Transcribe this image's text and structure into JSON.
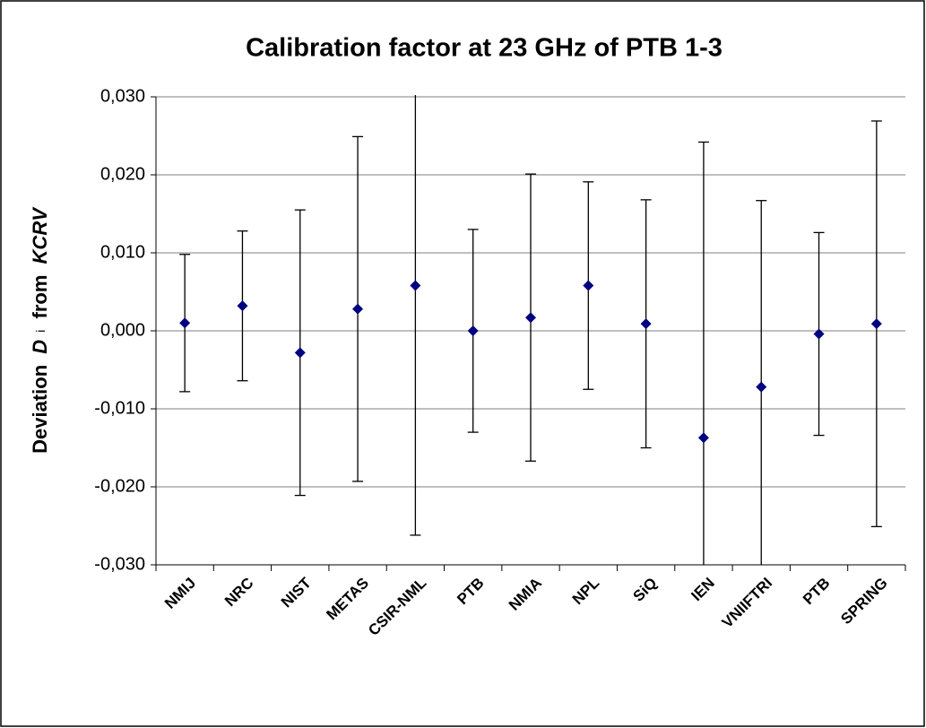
{
  "chart_data": {
    "type": "errorbar",
    "title": "Calibration factor at 23 GHz of PTB 1-3",
    "y_label_parts": [
      "Deviation",
      "D",
      "i",
      "from",
      "KCRV"
    ],
    "categories": [
      "NMIJ",
      "NRC",
      "NIST",
      "METAS",
      "CSIR-NML",
      "PTB",
      "NMIA",
      "NPL",
      "SiQ",
      "IEN",
      "VNIIFTRI",
      "PTB",
      "SPRING"
    ],
    "values": [
      0.001,
      0.0032,
      -0.0028,
      0.0028,
      0.0058,
      0.0,
      0.0017,
      0.0058,
      0.0009,
      -0.0137,
      -0.0072,
      -0.0004,
      0.0009
    ],
    "errors": [
      0.0088,
      0.0096,
      0.0183,
      0.0221,
      0.032,
      0.013,
      0.0184,
      0.0133,
      0.0159,
      0.0379,
      0.0239,
      0.013,
      0.026
    ],
    "color": "#000080",
    "ylim": [
      -0.03,
      0.03
    ],
    "yticks": [
      {
        "value": -0.03,
        "label": "-0,030"
      },
      {
        "value": -0.02,
        "label": "-0,020"
      },
      {
        "value": -0.01,
        "label": "-0,010"
      },
      {
        "value": 0,
        "label": "0,000"
      },
      {
        "value": 0.01,
        "label": "0,010"
      },
      {
        "value": 0.02,
        "label": "0,020"
      },
      {
        "value": 0.03,
        "label": "0,030"
      }
    ],
    "grid": true
  }
}
